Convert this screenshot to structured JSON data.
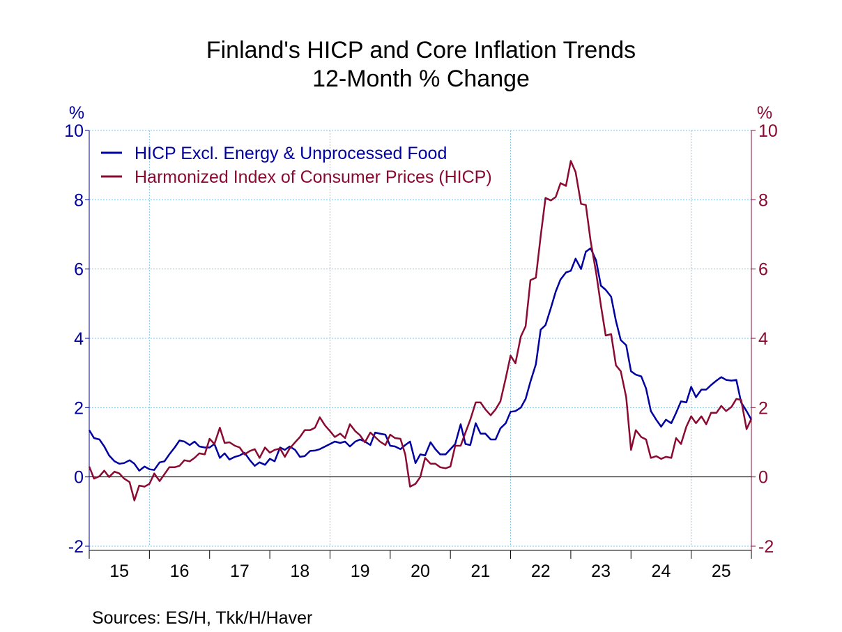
{
  "title": "Finland's HICP and Core Inflation Trends",
  "subtitle": "12-Month % Change",
  "source": "Sources:  ES/H, Tkk/H/Haver",
  "colors": {
    "core": "#0000a0",
    "hicp": "#8b0a32",
    "grid": "#7fc7ea",
    "axis": "#000000"
  },
  "chart_data": {
    "type": "line",
    "title": "Finland's HICP and Core Inflation Trends",
    "subtitle": "12-Month % Change",
    "ylabel_left": "%",
    "ylabel_right": "%",
    "ylim": [
      -2,
      10
    ],
    "yticks": [
      -2,
      0,
      2,
      4,
      6,
      8,
      10
    ],
    "xlim": [
      2015.0,
      2026.0
    ],
    "xtick_labels": [
      "15",
      "16",
      "17",
      "18",
      "19",
      "20",
      "21",
      "22",
      "23",
      "24",
      "25"
    ],
    "grid": true,
    "legend_position": "top-left",
    "series": [
      {
        "name": "HICP Excl. Energy & Unprocessed Food",
        "axis": "left",
        "points": [
          [
            2015.0,
            1.35
          ],
          [
            2015.08,
            1.12
          ],
          [
            2015.17,
            1.08
          ],
          [
            2015.25,
            0.88
          ],
          [
            2015.33,
            0.62
          ],
          [
            2015.42,
            0.45
          ],
          [
            2015.5,
            0.38
          ],
          [
            2015.58,
            0.4
          ],
          [
            2015.67,
            0.48
          ],
          [
            2015.75,
            0.38
          ],
          [
            2015.83,
            0.18
          ],
          [
            2015.92,
            0.3
          ],
          [
            2016.0,
            0.22
          ],
          [
            2016.08,
            0.2
          ],
          [
            2016.17,
            0.42
          ],
          [
            2016.25,
            0.45
          ],
          [
            2016.33,
            0.65
          ],
          [
            2016.42,
            0.85
          ],
          [
            2016.5,
            1.05
          ],
          [
            2016.58,
            1.02
          ],
          [
            2016.67,
            0.92
          ],
          [
            2016.75,
            1.02
          ],
          [
            2016.83,
            0.88
          ],
          [
            2016.92,
            0.85
          ],
          [
            2017.0,
            0.85
          ],
          [
            2017.08,
            0.95
          ],
          [
            2017.17,
            0.55
          ],
          [
            2017.25,
            0.68
          ],
          [
            2017.33,
            0.5
          ],
          [
            2017.42,
            0.58
          ],
          [
            2017.5,
            0.62
          ],
          [
            2017.58,
            0.7
          ],
          [
            2017.67,
            0.48
          ],
          [
            2017.75,
            0.32
          ],
          [
            2017.83,
            0.42
          ],
          [
            2017.92,
            0.35
          ],
          [
            2018.0,
            0.52
          ],
          [
            2018.08,
            0.45
          ],
          [
            2018.17,
            0.85
          ],
          [
            2018.25,
            0.78
          ],
          [
            2018.33,
            0.88
          ],
          [
            2018.42,
            0.78
          ],
          [
            2018.5,
            0.58
          ],
          [
            2018.58,
            0.6
          ],
          [
            2018.67,
            0.75
          ],
          [
            2018.75,
            0.76
          ],
          [
            2018.83,
            0.8
          ],
          [
            2018.92,
            0.88
          ],
          [
            2019.0,
            0.95
          ],
          [
            2019.08,
            1.02
          ],
          [
            2019.17,
            0.98
          ],
          [
            2019.25,
            1.02
          ],
          [
            2019.33,
            0.88
          ],
          [
            2019.42,
            1.02
          ],
          [
            2019.5,
            1.08
          ],
          [
            2019.58,
            1.02
          ],
          [
            2019.67,
            0.92
          ],
          [
            2019.75,
            1.28
          ],
          [
            2019.83,
            1.25
          ],
          [
            2019.92,
            1.22
          ],
          [
            2020.0,
            0.9
          ],
          [
            2020.08,
            0.88
          ],
          [
            2020.17,
            0.8
          ],
          [
            2020.25,
            0.92
          ],
          [
            2020.33,
            1.02
          ],
          [
            2020.42,
            0.4
          ],
          [
            2020.5,
            0.65
          ],
          [
            2020.58,
            0.62
          ],
          [
            2020.67,
            1.0
          ],
          [
            2020.75,
            0.8
          ],
          [
            2020.83,
            0.65
          ],
          [
            2020.92,
            0.65
          ],
          [
            2021.0,
            0.8
          ],
          [
            2021.08,
            0.95
          ],
          [
            2021.17,
            1.52
          ],
          [
            2021.25,
            0.95
          ],
          [
            2021.33,
            0.92
          ],
          [
            2021.42,
            1.55
          ],
          [
            2021.5,
            1.25
          ],
          [
            2021.58,
            1.25
          ],
          [
            2021.67,
            1.08
          ],
          [
            2021.75,
            1.08
          ],
          [
            2021.83,
            1.4
          ],
          [
            2021.92,
            1.55
          ],
          [
            2022.0,
            1.88
          ],
          [
            2022.08,
            1.9
          ],
          [
            2022.17,
            2.0
          ],
          [
            2022.25,
            2.25
          ],
          [
            2022.33,
            2.75
          ],
          [
            2022.42,
            3.25
          ],
          [
            2022.5,
            4.25
          ],
          [
            2022.58,
            4.38
          ],
          [
            2022.67,
            4.88
          ],
          [
            2022.75,
            5.35
          ],
          [
            2022.83,
            5.7
          ],
          [
            2022.92,
            5.9
          ],
          [
            2023.0,
            5.95
          ],
          [
            2023.08,
            6.3
          ],
          [
            2023.17,
            6.0
          ],
          [
            2023.25,
            6.5
          ],
          [
            2023.33,
            6.6
          ],
          [
            2023.42,
            6.25
          ],
          [
            2023.5,
            5.52
          ],
          [
            2023.58,
            5.4
          ],
          [
            2023.67,
            5.2
          ],
          [
            2023.75,
            4.5
          ],
          [
            2023.83,
            3.95
          ],
          [
            2023.92,
            3.8
          ],
          [
            2024.0,
            3.05
          ],
          [
            2024.08,
            2.95
          ],
          [
            2024.17,
            2.9
          ],
          [
            2024.25,
            2.55
          ],
          [
            2024.33,
            1.9
          ],
          [
            2024.42,
            1.65
          ],
          [
            2024.5,
            1.45
          ],
          [
            2024.58,
            1.65
          ],
          [
            2024.67,
            1.55
          ],
          [
            2024.75,
            1.85
          ],
          [
            2024.83,
            2.18
          ],
          [
            2024.92,
            2.15
          ],
          [
            2025.0,
            2.6
          ],
          [
            2025.08,
            2.3
          ],
          [
            2025.17,
            2.52
          ],
          [
            2025.25,
            2.52
          ],
          [
            2025.33,
            2.65
          ],
          [
            2025.42,
            2.78
          ],
          [
            2025.5,
            2.88
          ],
          [
            2025.58,
            2.8
          ],
          [
            2025.67,
            2.78
          ],
          [
            2025.75,
            2.8
          ],
          [
            2025.83,
            2.15
          ],
          [
            2025.92,
            1.9
          ],
          [
            2026.0,
            1.65
          ]
        ]
      },
      {
        "name": "Harmonized Index of Consumer Prices (HICP)",
        "axis": "right",
        "points": [
          [
            2015.0,
            0.3
          ],
          [
            2015.08,
            -0.05
          ],
          [
            2015.17,
            0.02
          ],
          [
            2015.25,
            0.18
          ],
          [
            2015.33,
            0.0
          ],
          [
            2015.42,
            0.15
          ],
          [
            2015.5,
            0.1
          ],
          [
            2015.58,
            -0.05
          ],
          [
            2015.67,
            -0.15
          ],
          [
            2015.75,
            -0.68
          ],
          [
            2015.83,
            -0.25
          ],
          [
            2015.92,
            -0.28
          ],
          [
            2016.0,
            -0.2
          ],
          [
            2016.08,
            0.1
          ],
          [
            2016.17,
            -0.12
          ],
          [
            2016.25,
            0.08
          ],
          [
            2016.33,
            0.28
          ],
          [
            2016.42,
            0.28
          ],
          [
            2016.5,
            0.32
          ],
          [
            2016.58,
            0.48
          ],
          [
            2016.67,
            0.45
          ],
          [
            2016.75,
            0.55
          ],
          [
            2016.83,
            0.68
          ],
          [
            2016.92,
            0.65
          ],
          [
            2017.0,
            1.1
          ],
          [
            2017.08,
            0.95
          ],
          [
            2017.17,
            1.42
          ],
          [
            2017.25,
            0.98
          ],
          [
            2017.33,
            1.0
          ],
          [
            2017.42,
            0.9
          ],
          [
            2017.5,
            0.85
          ],
          [
            2017.58,
            0.65
          ],
          [
            2017.67,
            0.75
          ],
          [
            2017.75,
            0.8
          ],
          [
            2017.83,
            0.55
          ],
          [
            2017.92,
            0.85
          ],
          [
            2018.0,
            0.7
          ],
          [
            2018.08,
            0.78
          ],
          [
            2018.17,
            0.82
          ],
          [
            2018.25,
            0.58
          ],
          [
            2018.33,
            0.82
          ],
          [
            2018.42,
            1.0
          ],
          [
            2018.5,
            1.15
          ],
          [
            2018.58,
            1.35
          ],
          [
            2018.67,
            1.35
          ],
          [
            2018.75,
            1.42
          ],
          [
            2018.83,
            1.72
          ],
          [
            2018.92,
            1.48
          ],
          [
            2019.0,
            1.32
          ],
          [
            2019.08,
            1.15
          ],
          [
            2019.17,
            1.25
          ],
          [
            2019.25,
            1.12
          ],
          [
            2019.33,
            1.52
          ],
          [
            2019.42,
            1.32
          ],
          [
            2019.5,
            1.2
          ],
          [
            2019.58,
            1.0
          ],
          [
            2019.67,
            1.28
          ],
          [
            2019.75,
            1.15
          ],
          [
            2019.83,
            1.02
          ],
          [
            2019.92,
            0.92
          ],
          [
            2020.0,
            1.22
          ],
          [
            2020.08,
            1.12
          ],
          [
            2020.17,
            1.1
          ],
          [
            2020.25,
            0.65
          ],
          [
            2020.33,
            -0.28
          ],
          [
            2020.42,
            -0.2
          ],
          [
            2020.5,
            0.0
          ],
          [
            2020.58,
            0.55
          ],
          [
            2020.67,
            0.38
          ],
          [
            2020.75,
            0.38
          ],
          [
            2020.83,
            0.28
          ],
          [
            2020.92,
            0.25
          ],
          [
            2021.0,
            0.3
          ],
          [
            2021.08,
            0.9
          ],
          [
            2021.17,
            0.9
          ],
          [
            2021.25,
            1.28
          ],
          [
            2021.33,
            1.65
          ],
          [
            2021.42,
            2.15
          ],
          [
            2021.5,
            2.15
          ],
          [
            2021.58,
            1.95
          ],
          [
            2021.67,
            1.78
          ],
          [
            2021.75,
            1.95
          ],
          [
            2021.83,
            2.18
          ],
          [
            2021.92,
            2.85
          ],
          [
            2022.0,
            3.5
          ],
          [
            2022.08,
            3.28
          ],
          [
            2022.17,
            4.05
          ],
          [
            2022.25,
            4.35
          ],
          [
            2022.33,
            5.68
          ],
          [
            2022.42,
            5.75
          ],
          [
            2022.5,
            6.95
          ],
          [
            2022.58,
            8.05
          ],
          [
            2022.67,
            7.98
          ],
          [
            2022.75,
            8.08
          ],
          [
            2022.83,
            8.48
          ],
          [
            2022.92,
            8.4
          ],
          [
            2023.0,
            9.12
          ],
          [
            2023.08,
            8.8
          ],
          [
            2023.17,
            7.88
          ],
          [
            2023.25,
            7.85
          ],
          [
            2023.33,
            6.8
          ],
          [
            2023.42,
            5.9
          ],
          [
            2023.5,
            4.95
          ],
          [
            2023.58,
            4.08
          ],
          [
            2023.67,
            4.12
          ],
          [
            2023.75,
            3.22
          ],
          [
            2023.83,
            3.05
          ],
          [
            2023.92,
            2.3
          ],
          [
            2024.0,
            0.78
          ],
          [
            2024.08,
            1.35
          ],
          [
            2024.17,
            1.15
          ],
          [
            2024.25,
            1.08
          ],
          [
            2024.33,
            0.55
          ],
          [
            2024.42,
            0.6
          ],
          [
            2024.5,
            0.52
          ],
          [
            2024.58,
            0.58
          ],
          [
            2024.67,
            0.55
          ],
          [
            2024.75,
            1.12
          ],
          [
            2024.83,
            0.95
          ],
          [
            2024.92,
            1.45
          ],
          [
            2025.0,
            1.75
          ],
          [
            2025.08,
            1.55
          ],
          [
            2025.17,
            1.75
          ],
          [
            2025.25,
            1.52
          ],
          [
            2025.33,
            1.85
          ],
          [
            2025.42,
            1.85
          ],
          [
            2025.5,
            2.05
          ],
          [
            2025.58,
            1.9
          ],
          [
            2025.67,
            2.02
          ],
          [
            2025.75,
            2.25
          ],
          [
            2025.83,
            2.22
          ],
          [
            2025.92,
            1.38
          ],
          [
            2026.0,
            1.68
          ]
        ]
      }
    ]
  }
}
